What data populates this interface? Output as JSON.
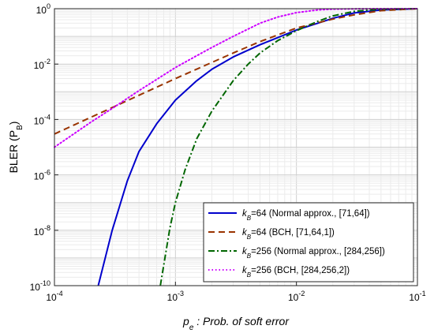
{
  "chart_data": {
    "type": "line",
    "xscale": "log",
    "yscale": "log",
    "xlim": [
      0.0001,
      0.1
    ],
    "ylim": [
      1e-10,
      1
    ],
    "grid": true,
    "legend_position": "bottom-right",
    "xlabel": {
      "main": "p",
      "sub": "e",
      "rest": " : Prob. of soft error"
    },
    "ylabel": "BLER (P",
    "ylabel_sub": "B",
    "ylabel_close": ")",
    "x_ticks": [
      {
        "value": 0.0001,
        "base": "10",
        "exp": "-4"
      },
      {
        "value": 0.001,
        "base": "10",
        "exp": "-3"
      },
      {
        "value": 0.01,
        "base": "10",
        "exp": "-2"
      },
      {
        "value": 0.1,
        "base": "10",
        "exp": "-1"
      }
    ],
    "y_ticks": [
      {
        "value": 1,
        "base": "10",
        "exp": "0"
      },
      {
        "value": 0.01,
        "base": "10",
        "exp": "-2"
      },
      {
        "value": 0.0001,
        "base": "10",
        "exp": "-4"
      },
      {
        "value": 1e-06,
        "base": "10",
        "exp": "-6"
      },
      {
        "value": 1e-08,
        "base": "10",
        "exp": "-8"
      },
      {
        "value": 1e-10,
        "base": "10",
        "exp": "-10"
      }
    ],
    "series": [
      {
        "name": "k_B=64 (Normal approx., [71,64])",
        "legend": {
          "k": "k",
          "sub": "B",
          "rest": "=64 (Normal approx., [71,64])"
        },
        "color": "#0000cc",
        "dash": "solid",
        "x": [
          0.00023,
          0.0003,
          0.0004,
          0.0005,
          0.0007,
          0.001,
          0.0015,
          0.002,
          0.003,
          0.005,
          0.007,
          0.01,
          0.015,
          0.02,
          0.03,
          0.05,
          0.1
        ],
        "y": [
          1e-10,
          1e-08,
          6e-07,
          7e-06,
          7e-05,
          0.0005,
          0.0025,
          0.0065,
          0.018,
          0.05,
          0.09,
          0.17,
          0.3,
          0.45,
          0.7,
          0.9,
          1
        ]
      },
      {
        "name": "k_B=64 (BCH, [71,64,1])",
        "legend": {
          "k": "k",
          "sub": "B",
          "rest": "=64 (BCH, [71,64,1])"
        },
        "color": "#993300",
        "dash": "dashed",
        "x": [
          0.0001,
          0.0002,
          0.0003,
          0.0005,
          0.001,
          0.002,
          0.003,
          0.005,
          0.01,
          0.02,
          0.03,
          0.05,
          0.1
        ],
        "y": [
          3e-05,
          0.00012,
          0.00027,
          0.00075,
          0.003,
          0.0115,
          0.025,
          0.065,
          0.2,
          0.42,
          0.6,
          0.85,
          1
        ]
      },
      {
        "name": "k_B=256 (Normal approx., [284,256])",
        "legend": {
          "k": "k",
          "sub": "B",
          "rest": "=256 (Normal approx., [284,256])"
        },
        "color": "#006600",
        "dash": "dashdot",
        "x": [
          0.00075,
          0.0009,
          0.001,
          0.0012,
          0.0015,
          0.002,
          0.003,
          0.004,
          0.005,
          0.007,
          0.01,
          0.015,
          0.02,
          0.03,
          0.05,
          0.1
        ],
        "y": [
          1e-10,
          1.2e-08,
          1e-07,
          1.5e-06,
          2e-05,
          0.0002,
          0.0025,
          0.01,
          0.025,
          0.07,
          0.16,
          0.35,
          0.55,
          0.8,
          0.97,
          1
        ]
      },
      {
        "name": "k_B=256 (BCH, [284,256,2])",
        "legend": {
          "k": "k",
          "sub": "B",
          "rest": "=256 (BCH, [284,256,2])"
        },
        "color": "#cc00ff",
        "dash": "dotted",
        "x": [
          0.0001,
          0.0002,
          0.0003,
          0.0005,
          0.001,
          0.0015,
          0.002,
          0.003,
          0.005,
          0.007,
          0.01,
          0.015,
          0.02,
          0.03,
          0.05,
          0.1
        ],
        "y": [
          1e-05,
          8e-05,
          0.00025,
          0.0011,
          0.0075,
          0.02,
          0.04,
          0.1,
          0.3,
          0.5,
          0.72,
          0.9,
          0.96,
          0.99,
          1,
          1
        ]
      }
    ]
  }
}
